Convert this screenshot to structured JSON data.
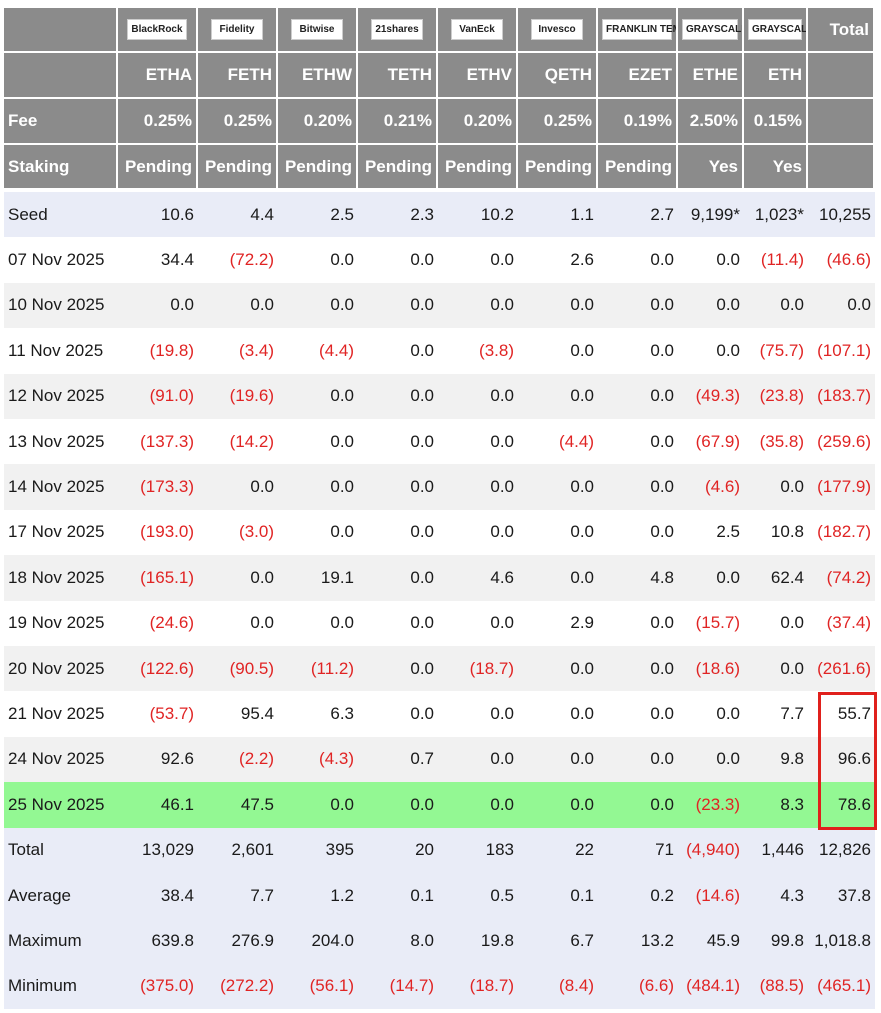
{
  "table": {
    "logos": [
      "BlackRock",
      "Fidelity",
      "Bitwise",
      "21shares",
      "VanEck",
      "Invesco",
      "FRANKLIN TEMPLETON",
      "GRAYSCALE",
      "GRAYSCALE"
    ],
    "total_header": "Total",
    "tickers": [
      "ETHA",
      "FETH",
      "ETHW",
      "TETH",
      "ETHV",
      "QETH",
      "EZET",
      "ETHE",
      "ETH"
    ],
    "fee": {
      "label": "Fee",
      "values": [
        "0.25%",
        "0.25%",
        "0.20%",
        "0.21%",
        "0.20%",
        "0.25%",
        "0.19%",
        "2.50%",
        "0.15%"
      ]
    },
    "staking": {
      "label": "Staking",
      "values": [
        "Pending",
        "Pending",
        "Pending",
        "Pending",
        "Pending",
        "Pending",
        "Pending",
        "Yes",
        "Yes"
      ]
    },
    "rows": [
      {
        "label": "Seed",
        "values": [
          "10.6",
          "4.4",
          "2.5",
          "2.3",
          "10.2",
          "1.1",
          "2.7",
          "9,199*",
          "1,023*",
          "10,255"
        ]
      },
      {
        "label": "07 Nov 2025",
        "values": [
          "34.4",
          "(72.2)",
          "0.0",
          "0.0",
          "0.0",
          "2.6",
          "0.0",
          "0.0",
          "(11.4)",
          "(46.6)"
        ]
      },
      {
        "label": "10 Nov 2025",
        "values": [
          "0.0",
          "0.0",
          "0.0",
          "0.0",
          "0.0",
          "0.0",
          "0.0",
          "0.0",
          "0.0",
          "0.0"
        ]
      },
      {
        "label": "11 Nov 2025",
        "values": [
          "(19.8)",
          "(3.4)",
          "(4.4)",
          "0.0",
          "(3.8)",
          "0.0",
          "0.0",
          "0.0",
          "(75.7)",
          "(107.1)"
        ]
      },
      {
        "label": "12 Nov 2025",
        "values": [
          "(91.0)",
          "(19.6)",
          "0.0",
          "0.0",
          "0.0",
          "0.0",
          "0.0",
          "(49.3)",
          "(23.8)",
          "(183.7)"
        ]
      },
      {
        "label": "13 Nov 2025",
        "values": [
          "(137.3)",
          "(14.2)",
          "0.0",
          "0.0",
          "0.0",
          "(4.4)",
          "0.0",
          "(67.9)",
          "(35.8)",
          "(259.6)"
        ]
      },
      {
        "label": "14 Nov 2025",
        "values": [
          "(173.3)",
          "0.0",
          "0.0",
          "0.0",
          "0.0",
          "0.0",
          "0.0",
          "(4.6)",
          "0.0",
          "(177.9)"
        ]
      },
      {
        "label": "17 Nov 2025",
        "values": [
          "(193.0)",
          "(3.0)",
          "0.0",
          "0.0",
          "0.0",
          "0.0",
          "0.0",
          "2.5",
          "10.8",
          "(182.7)"
        ]
      },
      {
        "label": "18 Nov 2025",
        "values": [
          "(165.1)",
          "0.0",
          "19.1",
          "0.0",
          "4.6",
          "0.0",
          "4.8",
          "0.0",
          "62.4",
          "(74.2)"
        ]
      },
      {
        "label": "19 Nov 2025",
        "values": [
          "(24.6)",
          "0.0",
          "0.0",
          "0.0",
          "0.0",
          "2.9",
          "0.0",
          "(15.7)",
          "0.0",
          "(37.4)"
        ]
      },
      {
        "label": "20 Nov 2025",
        "values": [
          "(122.6)",
          "(90.5)",
          "(11.2)",
          "0.0",
          "(18.7)",
          "0.0",
          "0.0",
          "(18.6)",
          "0.0",
          "(261.6)"
        ]
      },
      {
        "label": "21 Nov 2025",
        "values": [
          "(53.7)",
          "95.4",
          "6.3",
          "0.0",
          "0.0",
          "0.0",
          "0.0",
          "0.0",
          "7.7",
          "55.7"
        ]
      },
      {
        "label": "24 Nov 2025",
        "values": [
          "92.6",
          "(2.2)",
          "(4.3)",
          "0.7",
          "0.0",
          "0.0",
          "0.0",
          "0.0",
          "9.8",
          "96.6"
        ]
      },
      {
        "label": "25 Nov 2025",
        "values": [
          "46.1",
          "47.5",
          "0.0",
          "0.0",
          "0.0",
          "0.0",
          "0.0",
          "(23.3)",
          "8.3",
          "78.6"
        ]
      },
      {
        "label": "Total",
        "values": [
          "13,029",
          "2,601",
          "395",
          "20",
          "183",
          "22",
          "71",
          "(4,940)",
          "1,446",
          "12,826"
        ]
      },
      {
        "label": "Average",
        "values": [
          "38.4",
          "7.7",
          "1.2",
          "0.1",
          "0.5",
          "0.1",
          "0.2",
          "(14.6)",
          "4.3",
          "37.8"
        ]
      },
      {
        "label": "Maximum",
        "values": [
          "639.8",
          "276.9",
          "204.0",
          "8.0",
          "19.8",
          "6.7",
          "13.2",
          "45.9",
          "99.8",
          "1,018.8"
        ]
      },
      {
        "label": "Minimum",
        "values": [
          "(375.0)",
          "(272.2)",
          "(56.1)",
          "(14.7)",
          "(18.7)",
          "(8.4)",
          "(6.6)",
          "(484.1)",
          "(88.5)",
          "(465.1)"
        ]
      }
    ]
  }
}
